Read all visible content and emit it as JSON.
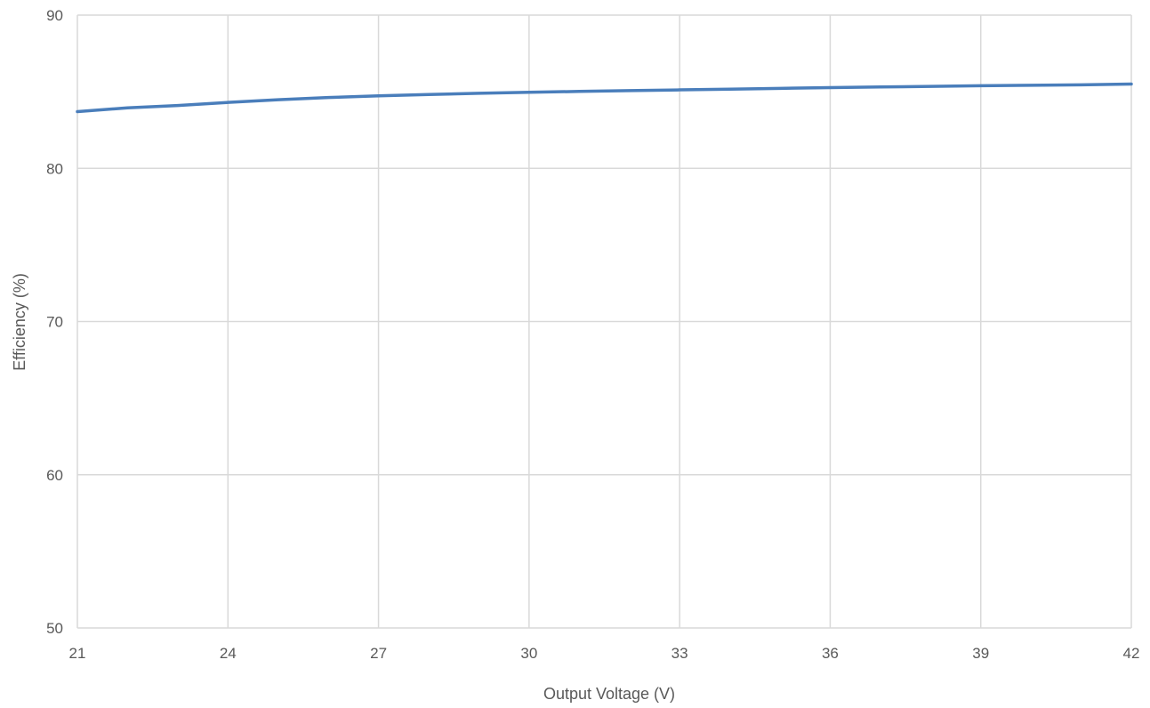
{
  "chart_data": {
    "type": "line",
    "title": "",
    "xlabel": "Output Voltage (V)",
    "ylabel": "Efficiency (%)",
    "xlim": [
      21,
      42
    ],
    "ylim": [
      50,
      90
    ],
    "x_ticks": [
      21,
      24,
      27,
      30,
      33,
      36,
      39,
      42
    ],
    "y_ticks": [
      50,
      60,
      70,
      80,
      90
    ],
    "grid": true,
    "legend": "none",
    "series": [
      {
        "color": "#4a7ebb",
        "x": [
          21,
          22,
          23,
          24,
          25,
          26,
          27,
          28,
          29,
          30,
          31,
          32,
          33,
          34,
          35,
          36,
          37,
          38,
          39,
          40,
          41,
          42
        ],
        "y": [
          83.7,
          83.95,
          84.1,
          84.3,
          84.48,
          84.62,
          84.73,
          84.82,
          84.9,
          84.96,
          85.02,
          85.07,
          85.12,
          85.17,
          85.22,
          85.27,
          85.31,
          85.35,
          85.39,
          85.42,
          85.45,
          85.5
        ]
      }
    ]
  }
}
